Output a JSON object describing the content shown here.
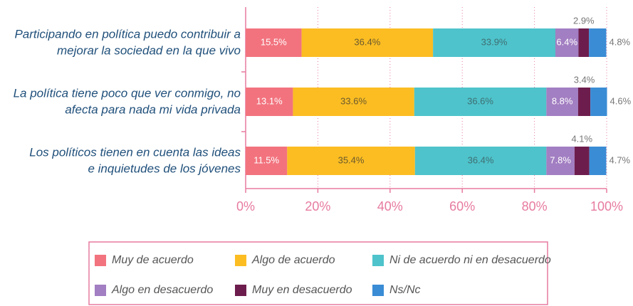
{
  "chart_data": {
    "type": "stacked-bar-horizontal",
    "categories": [
      [
        "Participando en política puedo contribuir a",
        "mejorar la sociedad en la que vivo"
      ],
      [
        "La política tiene poco que ver conmigo, no",
        "afecta para nada mi vida privada"
      ],
      [
        "Los políticos tienen en cuenta las ideas",
        "e inquietudes de los jóvenes"
      ]
    ],
    "series": [
      {
        "name": "Muy de acuerdo",
        "color": "#f2737e",
        "values": [
          15.5,
          13.1,
          11.5
        ],
        "value_labels": [
          "15.5%",
          "13.1%",
          "11.5%"
        ]
      },
      {
        "name": "Algo de acuerdo",
        "color": "#fbbd22",
        "values": [
          36.4,
          33.6,
          35.4
        ],
        "value_labels": [
          "36.4%",
          "33.6%",
          "35.4%"
        ]
      },
      {
        "name": "Ni de acuerdo ni en desacuerdo",
        "color": "#4ec3cb",
        "values": [
          33.9,
          36.6,
          36.4
        ],
        "value_labels": [
          "33.9%",
          "36.6%",
          "36.4%"
        ]
      },
      {
        "name": "Algo en desacuerdo",
        "color": "#a27ec2",
        "values": [
          6.4,
          8.8,
          7.8
        ],
        "value_labels": [
          "6.4%",
          "8.8%",
          "7.8%"
        ]
      },
      {
        "name": "Muy en desacuerdo",
        "color": "#6d1d4d",
        "values": [
          2.9,
          3.4,
          4.1
        ],
        "value_labels": [
          "2.9%",
          "3.4%",
          "4.1%"
        ]
      },
      {
        "name": "Ns/Nc",
        "color": "#3a8cd5",
        "values": [
          4.8,
          4.6,
          4.7
        ],
        "value_labels": [
          "4.8%",
          "4.6%",
          "4.7%"
        ]
      }
    ],
    "xlim": [
      0,
      100
    ],
    "xticks": [
      {
        "value": 0,
        "label": "0%"
      },
      {
        "value": 20,
        "label": "20%"
      },
      {
        "value": 40,
        "label": "40%"
      },
      {
        "value": 60,
        "label": "60%"
      },
      {
        "value": 80,
        "label": "80%"
      },
      {
        "value": 100,
        "label": "100%"
      }
    ],
    "grid": true,
    "legend": "bottom"
  }
}
